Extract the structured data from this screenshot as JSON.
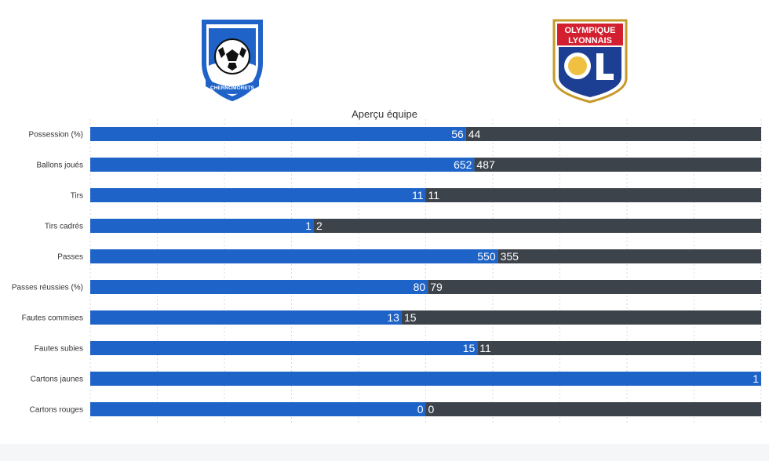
{
  "title": "Aperçu équipe",
  "teams": {
    "home": {
      "crest_text": "CHERNOMORETS",
      "crest_letters": [
        "F",
        "C"
      ],
      "crest_numbers": [
        "19",
        "36"
      ],
      "crest_color": "#1f63c8"
    },
    "away": {
      "crest_text_line1": "OLYMPIQUE",
      "crest_text_line2": "LYONNAIS",
      "crest_color": "#d32030"
    }
  },
  "colors": {
    "home_bar": "#1e63c7",
    "away_bar": "#3d434a",
    "grid": "#d6d9de",
    "axis_text": "#333333"
  },
  "chart_data": {
    "type": "bar",
    "orientation": "horizontal",
    "stacking": "percent",
    "categories": [
      "Possession (%)",
      "Ballons joués",
      "Tirs",
      "Tirs cadrés",
      "Passes",
      "Passes réussies (%)",
      "Fautes commises",
      "Fautes subies",
      "Cartons jaunes",
      "Cartons rouges"
    ],
    "series": [
      {
        "values": [
          56,
          652,
          11,
          1,
          550,
          80,
          13,
          15,
          1,
          0
        ],
        "color": "#1e63c7"
      },
      {
        "values": [
          44,
          487,
          11,
          2,
          355,
          79,
          15,
          11,
          0,
          0
        ],
        "color": "#3d434a"
      }
    ],
    "labels": [
      [
        "56",
        "44"
      ],
      [
        "652",
        "487"
      ],
      [
        "11",
        "11"
      ],
      [
        "1",
        "2"
      ],
      [
        "550",
        "355"
      ],
      [
        "80",
        "79"
      ],
      [
        "13",
        "15"
      ],
      [
        "15",
        "11"
      ],
      [
        "1",
        ""
      ],
      [
        "0",
        "0"
      ]
    ],
    "xlim": [
      0,
      100
    ],
    "grid": true,
    "legend": "none"
  }
}
